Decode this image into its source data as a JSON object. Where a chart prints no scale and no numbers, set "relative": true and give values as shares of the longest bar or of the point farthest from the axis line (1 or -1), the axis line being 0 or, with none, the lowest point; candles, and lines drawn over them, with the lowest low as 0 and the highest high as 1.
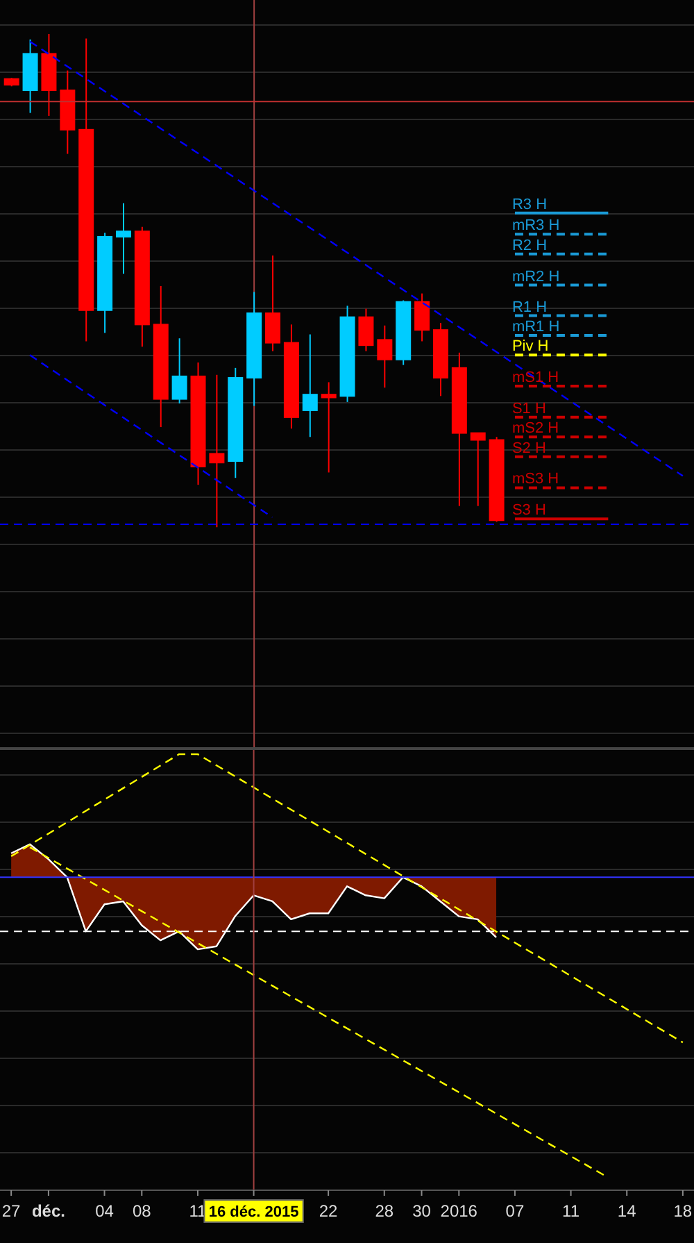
{
  "chart_data": [
    {
      "type": "candlestick",
      "relative": true,
      "tick_labels": false,
      "grid": "y",
      "categories": [
        "27",
        null,
        "déc.",
        null,
        null,
        "04",
        null,
        "08",
        null,
        null,
        "11",
        null,
        null,
        "16 déc. 2015",
        null,
        null,
        null,
        "22",
        null,
        null,
        "28",
        null,
        "30",
        null,
        "2016",
        null,
        null,
        "07",
        null,
        null,
        "11",
        null,
        null,
        "14",
        null,
        null,
        "18"
      ],
      "ohlc": [
        [
          0.909,
          0.911,
          0.894,
          0.897
        ],
        [
          0.886,
          0.989,
          0.84,
          0.96
        ],
        [
          0.96,
          1,
          0.834,
          0.886
        ],
        [
          0.886,
          0.926,
          0.757,
          0.806
        ],
        [
          0.806,
          0.991,
          0.377,
          0.44
        ],
        [
          0.44,
          0.597,
          0.394,
          0.589
        ],
        [
          0.589,
          0.657,
          0.514,
          0.6
        ],
        [
          0.6,
          0.609,
          0.366,
          0.411
        ],
        [
          0.411,
          0.489,
          0.203,
          0.26
        ],
        [
          0.26,
          0.383,
          0.251,
          0.306
        ],
        [
          0.306,
          0.334,
          0.086,
          0.123
        ],
        [
          0.149,
          0.309,
          0,
          0.131
        ],
        [
          0.134,
          0.323,
          0.1,
          0.303
        ],
        [
          0.303,
          0.477,
          0.246,
          0.434
        ],
        [
          0.434,
          0.551,
          0.357,
          0.374
        ],
        [
          0.374,
          0.411,
          0.2,
          0.223
        ],
        [
          0.237,
          0.391,
          0.183,
          0.269
        ],
        [
          0.269,
          0.294,
          0.111,
          0.263
        ],
        [
          0.266,
          0.449,
          0.254,
          0.426
        ],
        [
          0.426,
          0.443,
          0.357,
          0.369
        ],
        [
          0.38,
          0.409,
          0.283,
          0.34
        ],
        [
          0.34,
          0.46,
          0.329,
          0.457
        ],
        [
          0.457,
          0.474,
          0.377,
          0.4
        ],
        [
          0.4,
          0.414,
          0.266,
          0.303
        ],
        [
          0.323,
          0.354,
          0.043,
          0.191
        ],
        [
          0.191,
          0.191,
          0.043,
          0.177
        ],
        [
          0.177,
          0.183,
          0.011,
          0.014
        ],
        null,
        null,
        null,
        null,
        null,
        null,
        null,
        null,
        null,
        null
      ],
      "colors": [
        "#ff0000",
        "#00ccff",
        "#ff0000",
        "#ff0000",
        "#ff0000",
        "#00ccff",
        "#00ccff",
        "#ff0000",
        "#ff0000",
        "#00ccff",
        "#ff0000",
        "#ff0000",
        "#00ccff",
        "#00ccff",
        "#ff0000",
        "#ff0000",
        "#00ccff",
        "#ff0000",
        "#00ccff",
        "#ff0000",
        "#ff0000",
        "#00ccff",
        "#ff0000",
        "#ff0000",
        "#ff0000",
        "#ff0000",
        "#ff0000",
        null,
        null,
        null,
        null,
        null,
        null,
        null,
        null,
        null,
        null
      ],
      "series": [
        {
          "type": "line",
          "color": "#0000ff",
          "line_style": "dashed",
          "values": [
            null,
            0.985,
            null,
            null,
            null,
            null,
            null,
            null,
            null,
            null,
            null,
            null,
            null,
            null,
            null,
            null,
            null,
            null,
            null,
            null,
            null,
            null,
            null,
            null,
            null,
            null,
            null,
            null,
            null,
            null,
            null,
            null,
            null,
            null,
            null,
            null,
            0.104
          ]
        },
        {
          "type": "line",
          "color": "#0000ff",
          "line_style": "dashed",
          "values": [
            null,
            0.349,
            null,
            null,
            null,
            null,
            null,
            null,
            null,
            null,
            null,
            null,
            null,
            null,
            0.02,
            null,
            null,
            null,
            null,
            null,
            null,
            null,
            null,
            null,
            null,
            null,
            null,
            null,
            null,
            null,
            null,
            null,
            null,
            null,
            null,
            null,
            null
          ]
        }
      ],
      "ref_lines": [
        {
          "axis": "y",
          "value": 0.863,
          "color": "#c03030",
          "line_style": "solid"
        },
        {
          "axis": "y",
          "value": 0.006,
          "color": "#0000ff",
          "line_style": "dashed"
        },
        {
          "axis": "x",
          "value": "16 déc. 2015",
          "color": "#a04040",
          "line_style": "solid"
        },
        {
          "axis": "y",
          "value": 0.637,
          "label": "R3 H",
          "color": "#1a9ad6",
          "line_style": "solid"
        },
        {
          "axis": "y",
          "value": 0.594,
          "label": "mR3 H",
          "color": "#1a9ad6",
          "line_style": "dashed"
        },
        {
          "axis": "y",
          "value": 0.554,
          "label": "R2 H",
          "color": "#1a9ad6",
          "line_style": "dashed"
        },
        {
          "axis": "y",
          "value": 0.491,
          "label": "mR2 H",
          "color": "#1a9ad6",
          "line_style": "dashed"
        },
        {
          "axis": "y",
          "value": 0.429,
          "label": "R1 H",
          "color": "#1a9ad6",
          "line_style": "dashed"
        },
        {
          "axis": "y",
          "value": 0.389,
          "label": "mR1 H",
          "color": "#1a9ad6",
          "line_style": "dashed"
        },
        {
          "axis": "y",
          "value": 0.349,
          "label": "Piv H",
          "color": "#ffff00",
          "line_style": "dashed"
        },
        {
          "axis": "y",
          "value": 0.286,
          "label": "mS1 H",
          "color": "#cc0000",
          "line_style": "dashed"
        },
        {
          "axis": "y",
          "value": 0.223,
          "label": "S1 H",
          "color": "#cc0000",
          "line_style": "dashed"
        },
        {
          "axis": "y",
          "value": 0.183,
          "label": "mS2 H",
          "color": "#cc0000",
          "line_style": "dashed"
        },
        {
          "axis": "y",
          "value": 0.143,
          "label": "S2 H",
          "color": "#cc0000",
          "line_style": "dashed"
        },
        {
          "axis": "y",
          "value": 0.08,
          "label": "mS3 H",
          "color": "#cc0000",
          "line_style": "dashed"
        },
        {
          "axis": "y",
          "value": 0.017,
          "label": "S3 H",
          "color": "#cc0000",
          "line_style": "solid"
        }
      ]
    },
    {
      "type": "area",
      "relative": true,
      "tick_labels": "x",
      "grid": "y",
      "categories": [
        "27",
        null,
        "déc.",
        null,
        null,
        "04",
        null,
        "08",
        null,
        null,
        "11",
        null,
        null,
        "16 déc. 2015",
        null,
        null,
        null,
        "22",
        null,
        null,
        "28",
        null,
        "30",
        null,
        "2016",
        null,
        null,
        "07",
        null,
        null,
        "11",
        null,
        null,
        "14",
        null,
        null,
        "18"
      ],
      "series": [
        {
          "type": "area",
          "color": "#7f1a00",
          "values": [
            0.08,
            0.11,
            0.06,
            0,
            -0.18,
            -0.09,
            -0.08,
            -0.16,
            -0.21,
            -0.18,
            -0.24,
            -0.23,
            -0.13,
            -0.06,
            -0.08,
            -0.14,
            -0.12,
            -0.12,
            -0.03,
            -0.06,
            -0.07,
            0,
            -0.03,
            -0.08,
            -0.13,
            -0.14,
            -0.2,
            null,
            null,
            null,
            null,
            null,
            null,
            null,
            null,
            null,
            null
          ]
        },
        {
          "type": "line",
          "color": "#ffff00",
          "line_style": "dashed",
          "values": [
            0.07,
            null,
            null,
            null,
            null,
            null,
            null,
            null,
            null,
            0.41,
            0.41,
            null,
            null,
            null,
            null,
            null,
            null,
            null,
            null,
            null,
            null,
            null,
            null,
            null,
            null,
            null,
            null,
            null,
            null,
            null,
            null,
            null,
            null,
            null,
            null,
            null,
            -0.55
          ]
        },
        {
          "type": "line",
          "color": "#ffff00",
          "line_style": "dashed",
          "values": [
            null,
            0.1,
            null,
            null,
            null,
            null,
            null,
            null,
            null,
            null,
            null,
            null,
            null,
            null,
            null,
            null,
            null,
            null,
            null,
            null,
            null,
            null,
            null,
            null,
            null,
            null,
            null,
            null,
            null,
            null,
            null,
            null,
            -1,
            null,
            null,
            null,
            null
          ]
        }
      ],
      "ref_lines": [
        {
          "axis": "y",
          "value": 0,
          "color": "#3333ff",
          "line_style": "solid"
        },
        {
          "axis": "y",
          "value": -0.18,
          "color": "#ffffff",
          "line_style": "dashed"
        },
        {
          "axis": "x",
          "value": "16 déc. 2015",
          "color": "#a04040",
          "line_style": "solid"
        }
      ]
    }
  ]
}
